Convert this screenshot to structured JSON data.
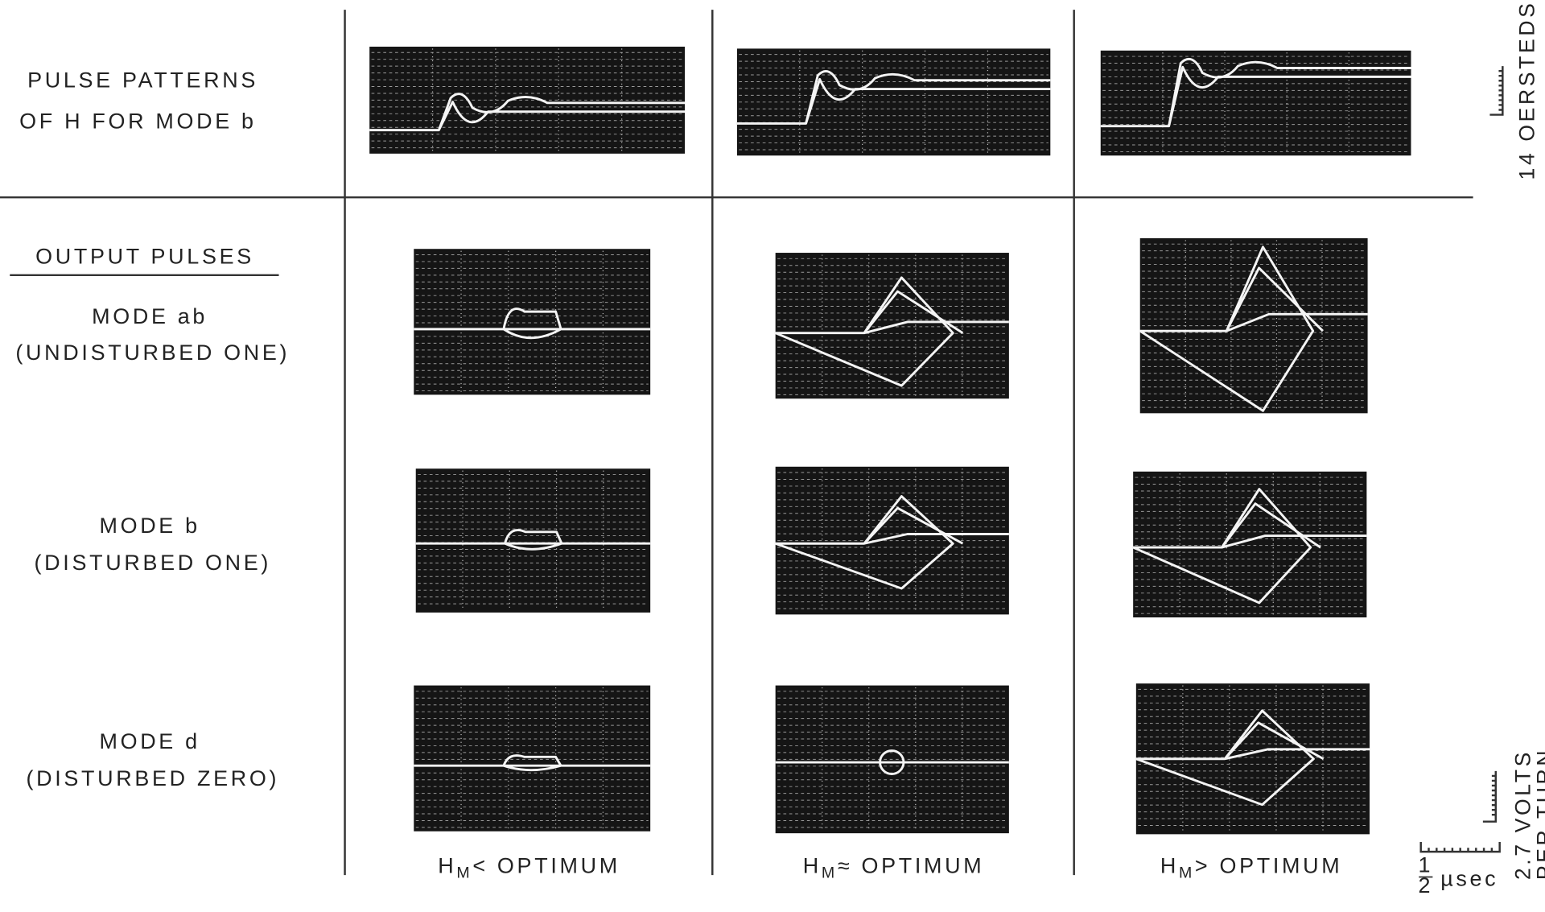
{
  "row_labels": {
    "top": [
      "PULSE PATTERNS",
      "OF H FOR MODE b"
    ],
    "output_heading": "OUTPUT PULSES",
    "rows": [
      {
        "mode": "MODE ab",
        "desc": "(UNDISTURBED ONE)"
      },
      {
        "mode": "MODE b",
        "desc": "(DISTURBED ONE)"
      },
      {
        "mode": "MODE d",
        "desc": "(DISTURBED ZERO)"
      }
    ]
  },
  "column_labels": [
    {
      "main": "H",
      "subscript": "M",
      "rest": "< OPTIMUM"
    },
    {
      "main": "H",
      "subscript": "M",
      "rest": "≈ OPTIMUM"
    },
    {
      "main": "H",
      "subscript": "M",
      "rest": "> OPTIMUM"
    }
  ],
  "scales": {
    "field": "14 OERSTEDS",
    "voltage": [
      "2.7 VOLTS",
      "PER TURN"
    ],
    "time": {
      "numerator": "1",
      "denominator": "2",
      "unit": "µsec"
    }
  }
}
